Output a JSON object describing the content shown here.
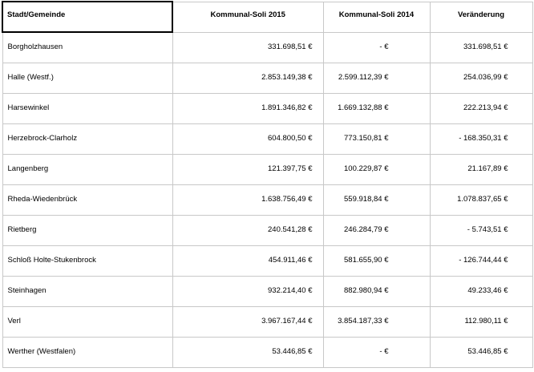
{
  "table": {
    "headers": [
      "Stadt/Gemeinde",
      "Kommunal-Soli 2015",
      "Kommunal-Soli 2014",
      "Veränderung"
    ],
    "rows": [
      [
        "Borgholzhausen",
        "331.698,51 €",
        "- €",
        "331.698,51 €"
      ],
      [
        "Halle (Westf.)",
        "2.853.149,38 €",
        "2.599.112,39 €",
        "254.036,99 €"
      ],
      [
        "Harsewinkel",
        "1.891.346,82 €",
        "1.669.132,88 €",
        "222.213,94 €"
      ],
      [
        "Herzebrock-Clarholz",
        "604.800,50 €",
        "773.150,81 €",
        "- 168.350,31 €"
      ],
      [
        "Langenberg",
        "121.397,75 €",
        "100.229,87 €",
        "21.167,89 €"
      ],
      [
        "Rheda-Wiedenbrück",
        "1.638.756,49 €",
        "559.918,84 €",
        "1.078.837,65 €"
      ],
      [
        "Rietberg",
        "240.541,28 €",
        "246.284,79 €",
        "- 5.743,51 €"
      ],
      [
        "Schloß Holte-Stukenbrock",
        "454.911,46 €",
        "581.655,90 €",
        "- 126.744,44 €"
      ],
      [
        "Steinhagen",
        "932.214,40 €",
        "882.980,94 €",
        "49.233,46 €"
      ],
      [
        "Verl",
        "3.967.167,44 €",
        "3.854.187,33 €",
        "112.980,11 €"
      ],
      [
        "Werther (Westfalen)",
        "53.446,85 €",
        "- €",
        "53.446,85 €"
      ]
    ]
  }
}
